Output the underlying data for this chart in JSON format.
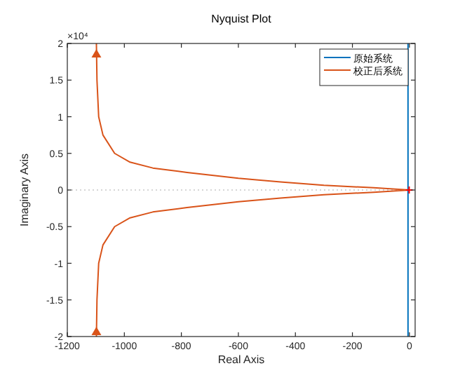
{
  "chart_data": {
    "type": "line",
    "title": "Nyquist Plot",
    "xlabel": "Real Axis",
    "ylabel": "Imaginary Axis",
    "annotations": [
      "×10⁴"
    ],
    "xlim": [
      -1200,
      20
    ],
    "xticks": [
      -1200,
      -1000,
      -800,
      -600,
      -400,
      -200,
      0
    ],
    "ylim": [
      -2,
      2
    ],
    "yticks": [
      -2,
      -1.5,
      -1,
      -0.5,
      0,
      0.5,
      1,
      1.5,
      2
    ],
    "grid": false,
    "legend": "top right",
    "line_style": "solid",
    "ref_lines": [
      {
        "axis": "y",
        "value": 0,
        "color": "#c8c8c8",
        "line_style": "dotted"
      }
    ],
    "series": [
      {
        "name": "原始系统",
        "color": "#0072bd",
        "x": [
          -5,
          -5
        ],
        "values": [
          -2,
          2
        ]
      },
      {
        "name": "校正后系统",
        "color": "#d95319",
        "x": [
          -1098,
          -1096,
          -1090,
          -1075,
          -1034,
          -980,
          -900,
          -780,
          -600,
          -452,
          -300,
          -125,
          0,
          -125,
          -300,
          -452,
          -600,
          -780,
          -900,
          -980,
          -1034,
          -1075,
          -1090,
          -1096,
          -1098
        ],
        "values": [
          2,
          1.5,
          1.0,
          0.75,
          0.5,
          0.38,
          0.3,
          0.24,
          0.16,
          0.11,
          0.065,
          0.03,
          0,
          -0.03,
          -0.065,
          -0.11,
          -0.16,
          -0.24,
          -0.3,
          -0.38,
          -0.5,
          -0.75,
          -1.0,
          -1.5,
          -2
        ]
      },
      {
        "type": "scatter",
        "color": "#ff0000",
        "marker": "cross",
        "x": [
          -1
        ],
        "values": [
          0
        ]
      }
    ]
  }
}
